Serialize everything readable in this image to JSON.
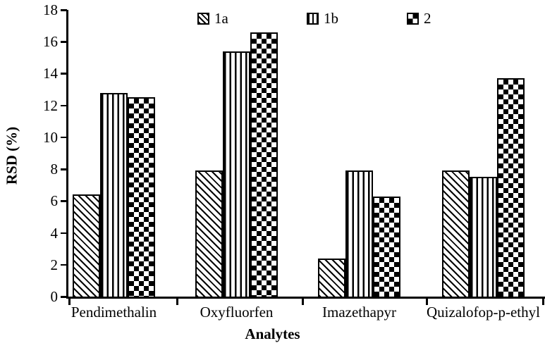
{
  "chart_data": {
    "type": "bar",
    "title": "",
    "xlabel": "Analytes",
    "ylabel": "RSD (%)",
    "ylim": [
      0,
      18
    ],
    "ytick_step": 2,
    "grid": false,
    "legend_position": "top-inside",
    "categories": [
      "Pendimethalin",
      "Oxyfluorfen",
      "Imazethapyr",
      "Quizalofop-p-ethyl"
    ],
    "series": [
      {
        "name": "1a",
        "pattern": "diagonal-hatch",
        "values": [
          6.4,
          7.9,
          2.4,
          7.9
        ]
      },
      {
        "name": "1b",
        "pattern": "vertical-lines",
        "values": [
          12.8,
          15.4,
          7.9,
          7.5
        ]
      },
      {
        "name": "2",
        "pattern": "checkerboard",
        "values": [
          12.5,
          16.6,
          6.3,
          13.7
        ]
      }
    ],
    "colors": {
      "foreground": "#000000",
      "background": "#ffffff"
    }
  }
}
